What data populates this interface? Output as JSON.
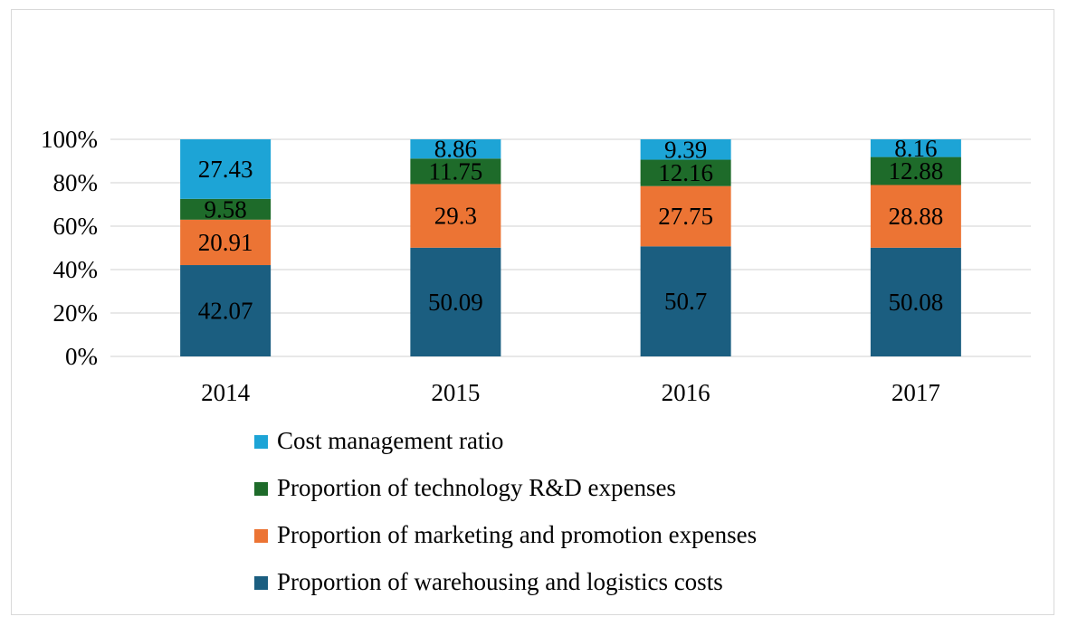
{
  "chart_data": {
    "type": "bar",
    "stacked": true,
    "categories": [
      "2014",
      "2015",
      "2016",
      "2017"
    ],
    "series": [
      {
        "name": "Proportion of warehousing and logistics costs",
        "color": "#1b5e80",
        "values": [
          42.07,
          50.09,
          50.7,
          50.08
        ]
      },
      {
        "name": "Proportion of marketing and promotion expenses",
        "color": "#ec7434",
        "values": [
          20.91,
          29.3,
          27.75,
          28.88
        ]
      },
      {
        "name": "Proportion of technology R&D expenses",
        "color": "#1e6b2a",
        "values": [
          9.58,
          11.75,
          12.16,
          12.88
        ]
      },
      {
        "name": "Cost management ratio",
        "color": "#1da4d6",
        "values": [
          27.43,
          8.86,
          9.39,
          8.16
        ]
      }
    ],
    "data_labels": [
      [
        "42.07",
        "50.09",
        "50.7",
        "50.08"
      ],
      [
        "20.91",
        "29.3",
        "27.75",
        "28.88"
      ],
      [
        "9.58",
        "11.75",
        "12.16",
        "12.88"
      ],
      [
        "27.43",
        "8.86",
        "9.39",
        "8.16"
      ]
    ],
    "yticks": [
      "0%",
      "20%",
      "40%",
      "60%",
      "80%",
      "100%"
    ],
    "ylim": [
      0,
      100
    ],
    "grid": true,
    "legend_position": "bottom",
    "legend_order": [
      3,
      2,
      1,
      0
    ],
    "title": "",
    "xlabel": "",
    "ylabel": ""
  }
}
